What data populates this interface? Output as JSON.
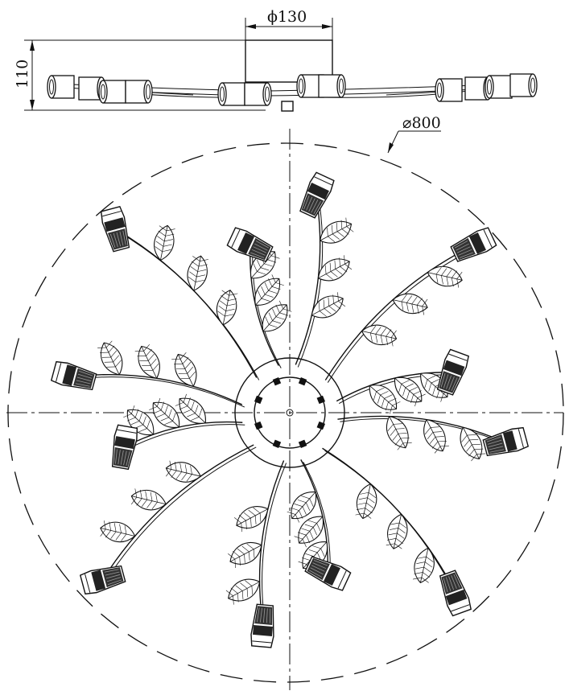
{
  "dimensions": {
    "top_diameter": "ϕ130",
    "height": "110",
    "overall_diameter": "⌀800"
  },
  "drawing": {
    "lamp_count": 12,
    "line_color": "#111111",
    "background": "#ffffff"
  }
}
